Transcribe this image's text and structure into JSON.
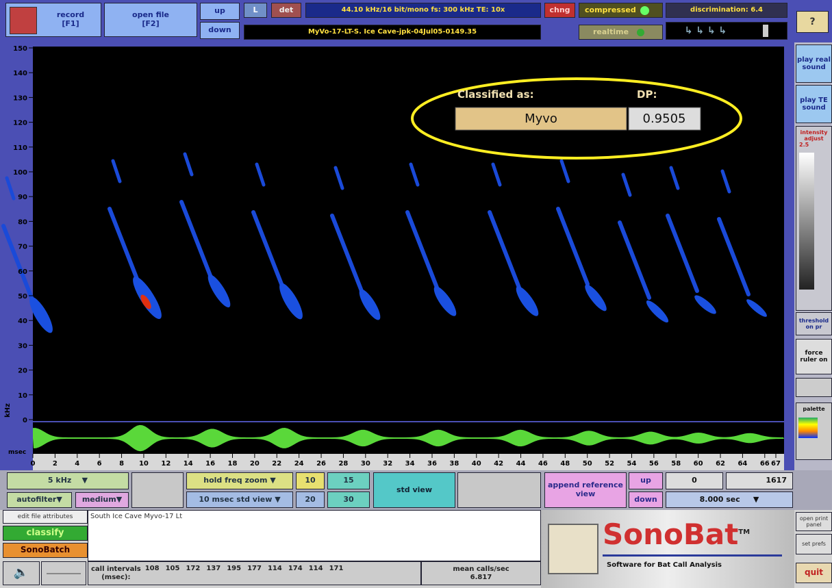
{
  "toolbar": {
    "record": "record",
    "record_key": "[F1]",
    "open_file": "open file",
    "open_key": "[F2]",
    "up": "up",
    "down": "down",
    "channel": "L",
    "det": "det",
    "info": "44.10 kHz/16 bit/mono   fs: 300 kHz   TE: 10x",
    "filename": "MyVo-17-LT-S. Ice Cave-jpk-04Jul05-0149.35",
    "chng": "chng",
    "compressed": "compressed",
    "realtime": "realtime",
    "discrimination": "discrimination:  6.4",
    "help": "?"
  },
  "side_panel": {
    "play_real": "play real sound",
    "play_te": "play TE sound",
    "intensity": "intensity adjust",
    "intensity_value": "2.5",
    "threshold": "threshold on pr",
    "force_ruler": "force ruler on",
    "palette": "palette"
  },
  "classification": {
    "label": "Classified as:",
    "dp_label": "DP:",
    "species": "Myvo",
    "dp": "0.9505"
  },
  "spectrogram": {
    "y_label": "kHz",
    "x_label": "msec",
    "yticks": [
      150,
      140,
      130,
      120,
      110,
      100,
      90,
      80,
      70,
      60,
      50,
      40,
      30,
      20,
      10,
      0
    ],
    "xticks": [
      0,
      2,
      4,
      6,
      8,
      10,
      12,
      14,
      16,
      18,
      20,
      22,
      24,
      26,
      28,
      30,
      32,
      34,
      36,
      38,
      40,
      42,
      44,
      46,
      48,
      50,
      52,
      54,
      56,
      58,
      60,
      62,
      64,
      66,
      67
    ]
  },
  "controls": {
    "freq": "5 kHz",
    "autofilter": "autofilter",
    "medium": "medium",
    "hold_freq_zoom": "hold freq zoom",
    "std_view_select": "10 msec std view",
    "zoom_buttons": [
      "10",
      "15",
      "20",
      "30"
    ],
    "std_view": "std view",
    "append": "append reference view",
    "up": "up",
    "down": "down",
    "start": "0",
    "end": "1617",
    "duration": "8.000 sec"
  },
  "bottom": {
    "edit_attributes": "edit file attributes",
    "attributes": "South Ice Cave Myvo-17 Lt",
    "classify": "classify",
    "sonobatch": "SonoBatch",
    "call_intervals_label": "call intervals",
    "call_intervals_unit": "(msec):",
    "call_intervals": [
      108,
      105,
      172,
      137,
      195,
      177,
      114,
      174,
      114,
      171
    ],
    "mean_label": "mean calls/sec",
    "mean_value": "6.817",
    "brand": "SonoBat",
    "tm": "TM",
    "tagline": "Software for Bat Call Analysis",
    "print": "open print panel",
    "prefs": "set prefs",
    "quit": "quit"
  }
}
